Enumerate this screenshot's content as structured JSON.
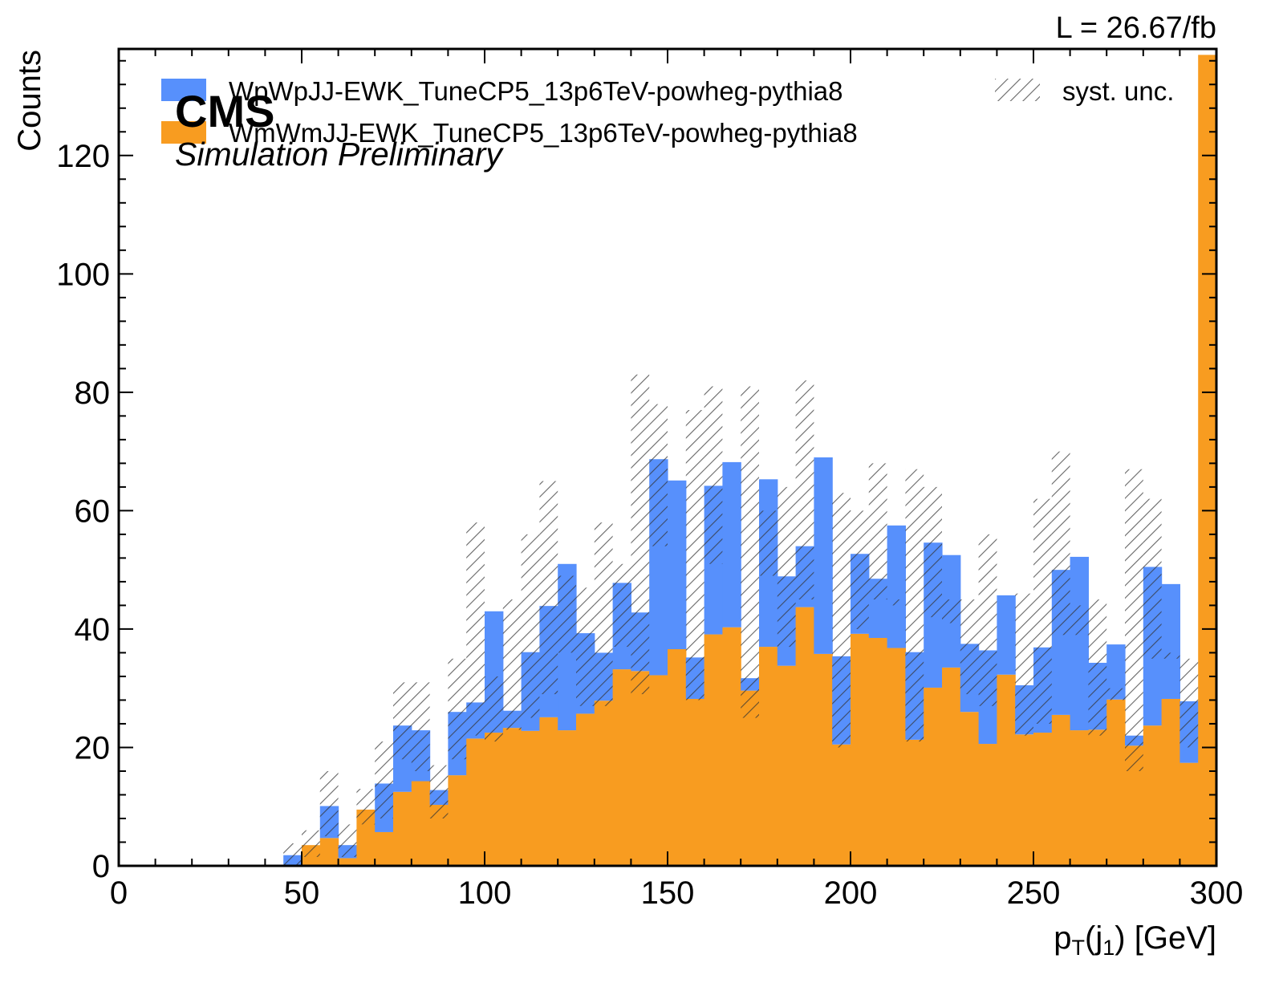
{
  "chart_data": {
    "type": "bar",
    "stacked": true,
    "histogram": true,
    "title_right": "L = 26.67/fb",
    "label_main": "CMS",
    "label_sub": "Simulation Preliminary",
    "xlabel_main": "p",
    "xlabel_sub1": "T",
    "xlabel_mid": "(j",
    "xlabel_sub2": "1",
    "xlabel_end": ") [GeV]",
    "ylabel": "Counts",
    "xlim": [
      0,
      300
    ],
    "ylim": [
      0,
      138
    ],
    "x_ticks": [
      "0",
      "50",
      "100",
      "150",
      "200",
      "250",
      "300"
    ],
    "y_ticks": [
      "0",
      "20",
      "40",
      "60",
      "80",
      "100",
      "120"
    ],
    "bin_edges_start": 45,
    "bin_width": 5,
    "series": [
      {
        "name": "WmWmJJ-EWK_TuneCP5_13p6TeV-powheg-pythia8",
        "color": "#f89c20",
        "values": [
          0,
          3.5,
          4.7,
          1.3,
          9.5,
          5.7,
          12.5,
          14.3,
          10.3,
          15.3,
          21.5,
          22.5,
          23.3,
          22.8,
          25.1,
          22.9,
          25.7,
          27.9,
          33.2,
          32.9,
          32.2,
          36.6,
          28.2,
          39.1,
          40.3,
          29.6,
          37.0,
          33.8,
          43.7,
          35.8,
          20.5,
          39.2,
          38.5,
          36.8,
          21.3,
          30.1,
          33.5,
          26.0,
          20.6,
          32.3,
          22.2,
          22.5,
          25.5,
          22.9,
          23.0,
          28.1,
          20.3,
          23.7,
          28.2,
          17.4,
          137
        ]
      },
      {
        "name": "WpWpJJ-EWK_TuneCP5_13p6TeV-powheg-pythia8",
        "color": "#5790fc",
        "values": [
          1.8,
          0,
          5.4,
          2.2,
          0,
          8.2,
          11.2,
          8.6,
          2.5,
          10.7,
          6.1,
          20.5,
          2.9,
          13.3,
          18.8,
          28.1,
          13.6,
          8.1,
          14.6,
          9.9,
          36.5,
          28.5,
          7.0,
          25.1,
          27.9,
          2.1,
          28.3,
          15.1,
          10.3,
          33.2,
          14.9,
          13.5,
          10.0,
          20.7,
          14.8,
          24.5,
          19.0,
          11.5,
          15.8,
          13.4,
          8.3,
          14.4,
          24.5,
          29.3,
          11.3,
          9.3,
          1.7,
          26.8,
          19.4,
          10.4,
          0
        ]
      }
    ],
    "uncertainty": {
      "name": "syst. unc.",
      "color": "#888888",
      "down": [
        0,
        1.5,
        5,
        1.5,
        7,
        8,
        18,
        16,
        8,
        18,
        22,
        21,
        23,
        25,
        29,
        36,
        27,
        27,
        37,
        29,
        54,
        52,
        28,
        51,
        54,
        25,
        49,
        37,
        45,
        55,
        20,
        40,
        45,
        44,
        21,
        42,
        41,
        29,
        27,
        40,
        22,
        24,
        39,
        39,
        22,
        28,
        16,
        35,
        35,
        20,
        137
      ],
      "up": [
        3.8,
        6,
        16,
        7,
        13,
        21,
        31,
        31,
        17,
        35,
        58,
        32,
        45,
        56,
        65,
        49,
        47,
        58,
        51,
        83,
        78,
        43,
        77,
        81,
        38,
        81,
        60,
        64,
        82,
        45,
        63,
        60,
        68,
        45,
        67,
        64,
        45,
        45,
        56,
        38,
        46,
        62,
        70,
        44,
        45,
        30,
        67,
        62,
        36,
        35,
        137
      ]
    },
    "legend_position": "top"
  }
}
